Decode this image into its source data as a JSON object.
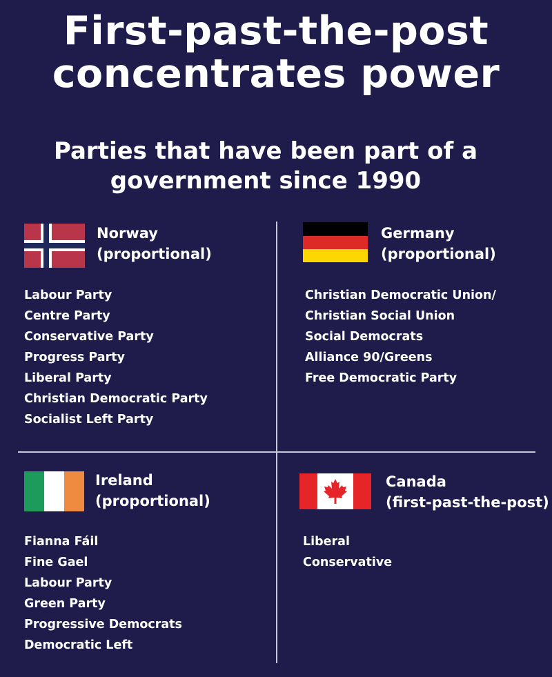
{
  "title_line1": "First-past-the-post",
  "title_line2": "concentrates power",
  "subtitle_line1": "Parties that have been part of a",
  "subtitle_line2": "government since 1990",
  "countries": {
    "norway": {
      "name": "Norway",
      "system": "(proportional)",
      "flag_icon": "norway-flag-icon",
      "parties": [
        "Labour Party",
        "Centre Party",
        "Conservative Party",
        "Progress Party",
        "Liberal Party",
        "Christian Democratic Party",
        "Socialist Left Party"
      ]
    },
    "germany": {
      "name": "Germany",
      "system": "(proportional)",
      "flag_icon": "germany-flag-icon",
      "parties": [
        "Christian Democratic Union/",
        "Christian Social Union",
        "Social Democrats",
        "Alliance 90/Greens",
        "Free Democratic Party"
      ]
    },
    "ireland": {
      "name": "Ireland",
      "system": "(proportional)",
      "flag_icon": "ireland-flag-icon",
      "parties": [
        "Fianna Fáil",
        "Fine Gael",
        "Labour Party",
        "Green Party",
        "Progressive Democrats",
        "Democratic Left"
      ]
    },
    "canada": {
      "name": "Canada",
      "system": "(first-past-the-post)",
      "flag_icon": "canada-flag-icon",
      "parties": [
        "Liberal",
        "Conservative"
      ]
    }
  },
  "colors": {
    "background": "#1f1b4b",
    "divider": "#c9c9d6",
    "norway_red": "#b9364a",
    "norway_blue": "#1f2a5c",
    "germany_black": "#000000",
    "germany_red": "#dd2a27",
    "germany_gold": "#fed700",
    "ireland_green": "#1c9b5a",
    "ireland_orange": "#ef8a41",
    "canada_red": "#e52528"
  }
}
